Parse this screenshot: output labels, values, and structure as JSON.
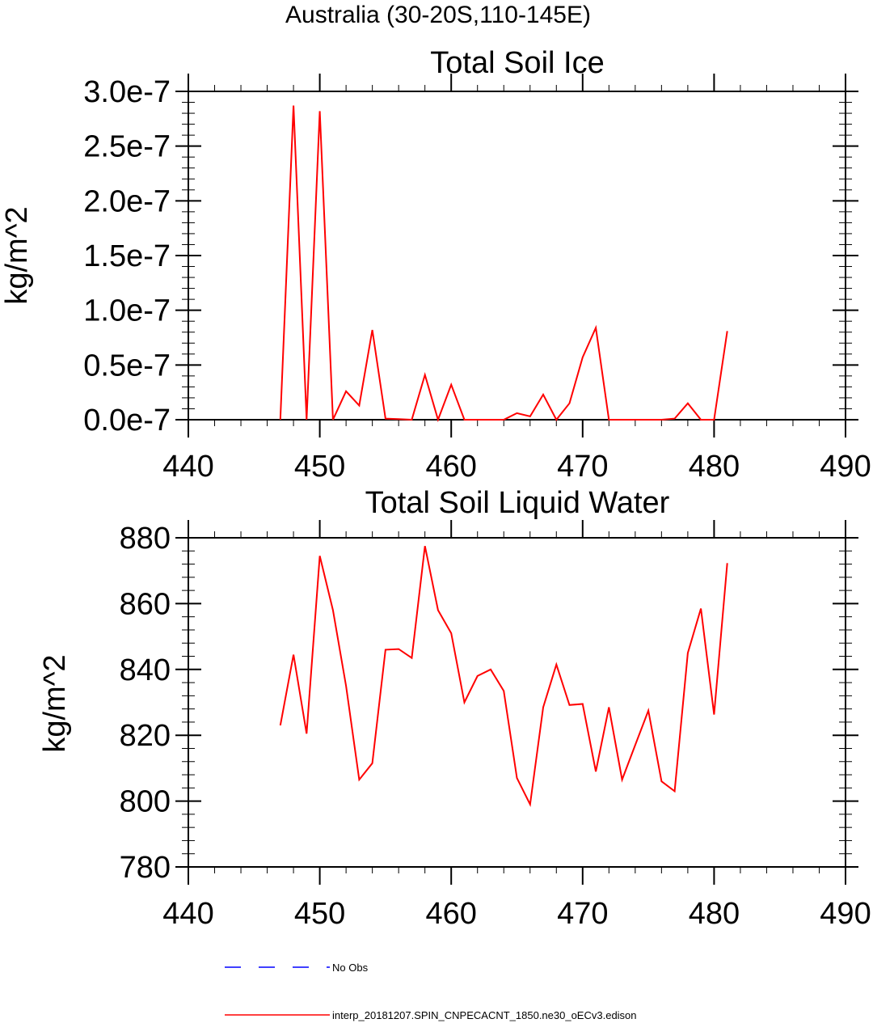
{
  "figure_title": "Australia (30-20S,110-145E)",
  "chart_data": [
    {
      "type": "line",
      "title": "Total Soil Ice",
      "xlabel": "",
      "ylabel": "kg/m^2",
      "xlim": [
        440,
        490
      ],
      "ylim": [
        0,
        3e-07
      ],
      "x_ticks": [
        "440",
        "450",
        "460",
        "470",
        "480",
        "490"
      ],
      "y_ticks": [
        "0.0e-7",
        "0.5e-7",
        "1.0e-7",
        "1.5e-7",
        "2.0e-7",
        "2.5e-7",
        "3.0e-7"
      ],
      "grid": false,
      "series": [
        {
          "name": "interp_20181207.SPIN_CNPECACNT_1850.ne30_oECv3.edison",
          "color": "#ff0000",
          "x": [
            447,
            448,
            449,
            450,
            451,
            452,
            453,
            454,
            455,
            456,
            457,
            458,
            459,
            460,
            461,
            462,
            463,
            464,
            465,
            466,
            467,
            468,
            469,
            470,
            471,
            472,
            473,
            474,
            475,
            476,
            477,
            478,
            479,
            480,
            481
          ],
          "y": [
            0,
            2.87e-07,
            0,
            2.82e-07,
            0,
            2.6e-08,
            1.3e-08,
            8.2e-08,
            1e-09,
            5e-10,
            0,
            4.1e-08,
            0,
            3.2e-08,
            0,
            0,
            0,
            0,
            6e-09,
            3e-09,
            2.3e-08,
            0,
            1.5e-08,
            5.7e-08,
            8.4e-08,
            0,
            0,
            0,
            0,
            0,
            1e-09,
            1.5e-08,
            0,
            0,
            8.1e-08
          ]
        }
      ]
    },
    {
      "type": "line",
      "title": "Total Soil Liquid Water",
      "xlabel": "",
      "ylabel": "kg/m^2",
      "xlim": [
        440,
        490
      ],
      "ylim": [
        780,
        880
      ],
      "x_ticks": [
        "440",
        "450",
        "460",
        "470",
        "480",
        "490"
      ],
      "y_ticks": [
        "780",
        "800",
        "820",
        "840",
        "860",
        "880"
      ],
      "grid": false,
      "series": [
        {
          "name": "interp_20181207.SPIN_CNPECACNT_1850.ne30_oECv3.edison",
          "color": "#ff0000",
          "x": [
            447,
            448,
            449,
            450,
            451,
            452,
            453,
            454,
            455,
            456,
            457,
            458,
            459,
            460,
            461,
            462,
            463,
            464,
            465,
            466,
            467,
            468,
            469,
            470,
            471,
            472,
            473,
            474,
            475,
            476,
            477,
            478,
            479,
            480,
            481
          ],
          "y": [
            823,
            844.5,
            820.5,
            874.5,
            858,
            835,
            806.5,
            811.5,
            846,
            846.2,
            843.5,
            877.5,
            858,
            851,
            830,
            838,
            840,
            833.5,
            807,
            799,
            828.5,
            841.5,
            829.2,
            829.5,
            809,
            828.5,
            806.5,
            817,
            827.5,
            806,
            803,
            845,
            858.5,
            826.3,
            872.3
          ]
        }
      ]
    }
  ],
  "legend": {
    "placement": "bottom",
    "items": [
      {
        "label": "No Obs",
        "color": "#0000ff",
        "style": "dashed"
      },
      {
        "label": "interp_20181207.SPIN_CNPECACNT_1850.ne30_oECv3.edison",
        "color": "#ff0000",
        "style": "solid"
      }
    ]
  }
}
